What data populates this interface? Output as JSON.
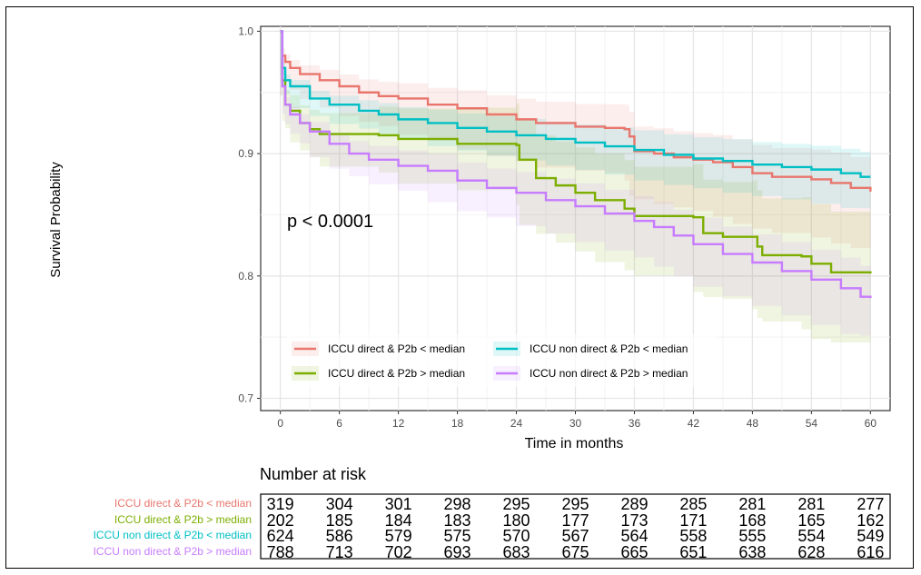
{
  "chart_data": {
    "type": "line",
    "ylabel": "Survival Probability",
    "xlabel": "Time in months",
    "xlim": [
      -2,
      62
    ],
    "ylim": [
      0.69,
      1.004
    ],
    "x_ticks": [
      "0",
      "6",
      "12",
      "18",
      "24",
      "30",
      "36",
      "42",
      "48",
      "54",
      "60"
    ],
    "y_ticks": [
      "0.7",
      "0.8",
      "0.9",
      "1.0"
    ],
    "annotation": "p < 0.0001",
    "grid": true,
    "legend_position": "inside-bottom",
    "series": [
      {
        "name": "ICCU direct & P2b < median",
        "color": "#e8766d",
        "points": [
          [
            0,
            1.0
          ],
          [
            0.2,
            0.98
          ],
          [
            0.5,
            0.975
          ],
          [
            1,
            0.97
          ],
          [
            2,
            0.965
          ],
          [
            4,
            0.96
          ],
          [
            6,
            0.955
          ],
          [
            8,
            0.95
          ],
          [
            10,
            0.947
          ],
          [
            12,
            0.945
          ],
          [
            15,
            0.94
          ],
          [
            18,
            0.937
          ],
          [
            21,
            0.932
          ],
          [
            24,
            0.928
          ],
          [
            26,
            0.925
          ],
          [
            30,
            0.922
          ],
          [
            33,
            0.921
          ],
          [
            35,
            0.92
          ],
          [
            35.5,
            0.914
          ],
          [
            36,
            0.902
          ],
          [
            38,
            0.9
          ],
          [
            40,
            0.897
          ],
          [
            42,
            0.895
          ],
          [
            44,
            0.893
          ],
          [
            46,
            0.889
          ],
          [
            48,
            0.884
          ],
          [
            50,
            0.881
          ],
          [
            54,
            0.879
          ],
          [
            56,
            0.876
          ],
          [
            58,
            0.872
          ],
          [
            60,
            0.869
          ]
        ],
        "band": [
          0.025,
          0.045
        ]
      },
      {
        "name": "ICCU direct & P2b > median",
        "color": "#7cae00",
        "points": [
          [
            0,
            1.0
          ],
          [
            0.2,
            0.96
          ],
          [
            0.5,
            0.94
          ],
          [
            1,
            0.935
          ],
          [
            2,
            0.925
          ],
          [
            3,
            0.92
          ],
          [
            4,
            0.916
          ],
          [
            10,
            0.915
          ],
          [
            12,
            0.912
          ],
          [
            18,
            0.908
          ],
          [
            24,
            0.907
          ],
          [
            24.3,
            0.895
          ],
          [
            26,
            0.88
          ],
          [
            28,
            0.874
          ],
          [
            30,
            0.868
          ],
          [
            32,
            0.862
          ],
          [
            35,
            0.855
          ],
          [
            36,
            0.849
          ],
          [
            42,
            0.848
          ],
          [
            43,
            0.835
          ],
          [
            45,
            0.832
          ],
          [
            48,
            0.832
          ],
          [
            48.5,
            0.824
          ],
          [
            49,
            0.817
          ],
          [
            53,
            0.816
          ],
          [
            54,
            0.81
          ],
          [
            56,
            0.803
          ],
          [
            60,
            0.802
          ]
        ],
        "band": [
          0.05,
          0.055
        ]
      },
      {
        "name": "ICCU non direct & P2b < median",
        "color": "#00bfc4",
        "points": [
          [
            0,
            1.0
          ],
          [
            0.2,
            0.97
          ],
          [
            0.5,
            0.96
          ],
          [
            1,
            0.955
          ],
          [
            3,
            0.945
          ],
          [
            5,
            0.94
          ],
          [
            8,
            0.935
          ],
          [
            10,
            0.932
          ],
          [
            12,
            0.928
          ],
          [
            15,
            0.925
          ],
          [
            18,
            0.921
          ],
          [
            21,
            0.918
          ],
          [
            24,
            0.915
          ],
          [
            27,
            0.912
          ],
          [
            30,
            0.909
          ],
          [
            33,
            0.906
          ],
          [
            36,
            0.903
          ],
          [
            39,
            0.899
          ],
          [
            42,
            0.896
          ],
          [
            45,
            0.894
          ],
          [
            48,
            0.891
          ],
          [
            51,
            0.889
          ],
          [
            54,
            0.887
          ],
          [
            57,
            0.884
          ],
          [
            59,
            0.881
          ],
          [
            60,
            0.881
          ]
        ],
        "band": [
          0.02,
          0.025
        ]
      },
      {
        "name": "ICCU non direct & P2b > median",
        "color": "#c77cff",
        "points": [
          [
            0,
            1.0
          ],
          [
            0.2,
            0.955
          ],
          [
            0.5,
            0.94
          ],
          [
            1,
            0.932
          ],
          [
            2,
            0.925
          ],
          [
            3,
            0.918
          ],
          [
            5,
            0.908
          ],
          [
            7,
            0.9
          ],
          [
            9,
            0.895
          ],
          [
            12,
            0.89
          ],
          [
            15,
            0.886
          ],
          [
            18,
            0.878
          ],
          [
            21,
            0.872
          ],
          [
            24,
            0.868
          ],
          [
            27,
            0.862
          ],
          [
            30,
            0.857
          ],
          [
            33,
            0.851
          ],
          [
            36,
            0.845
          ],
          [
            38,
            0.84
          ],
          [
            40,
            0.833
          ],
          [
            42,
            0.826
          ],
          [
            45,
            0.818
          ],
          [
            48,
            0.811
          ],
          [
            51,
            0.804
          ],
          [
            54,
            0.797
          ],
          [
            57,
            0.79
          ],
          [
            59,
            0.783
          ],
          [
            60,
            0.782
          ]
        ],
        "band": [
          0.025,
          0.03
        ]
      }
    ]
  },
  "risk_table": {
    "title": "Number at risk",
    "rows": [
      {
        "label": "ICCU direct & P2b < median",
        "color": "#e8766d",
        "values": [
          "319",
          "304",
          "301",
          "298",
          "295",
          "295",
          "289",
          "285",
          "281",
          "281",
          "277"
        ]
      },
      {
        "label": "ICCU direct & P2b > median",
        "color": "#7cae00",
        "values": [
          "202",
          "185",
          "184",
          "183",
          "180",
          "177",
          "173",
          "171",
          "168",
          "165",
          "162"
        ]
      },
      {
        "label": "ICCU non direct & P2b < median",
        "color": "#00bfc4",
        "values": [
          "624",
          "586",
          "579",
          "575",
          "570",
          "567",
          "564",
          "558",
          "555",
          "554",
          "549"
        ]
      },
      {
        "label": "ICCU non direct & P2b > median",
        "color": "#c77cff",
        "values": [
          "788",
          "713",
          "702",
          "693",
          "683",
          "675",
          "665",
          "651",
          "638",
          "628",
          "616"
        ]
      }
    ]
  }
}
